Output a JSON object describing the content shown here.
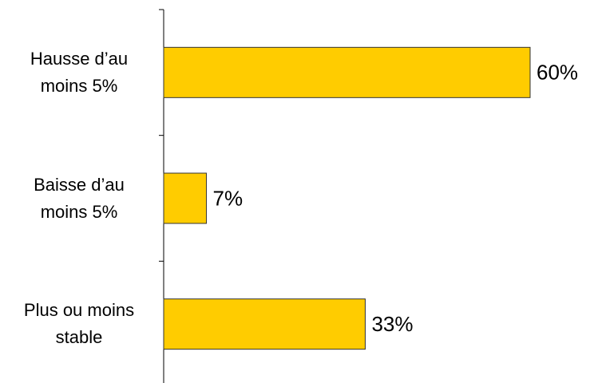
{
  "chart_data": {
    "type": "bar",
    "orientation": "horizontal",
    "categories": [
      "Hausse d’au moins 5%",
      "Baisse d’au moins 5%",
      "Plus ou moins stable"
    ],
    "values": [
      60,
      7,
      33
    ],
    "value_labels": [
      "60%",
      "7%",
      "33%"
    ],
    "color": "#FFCC00"
  }
}
